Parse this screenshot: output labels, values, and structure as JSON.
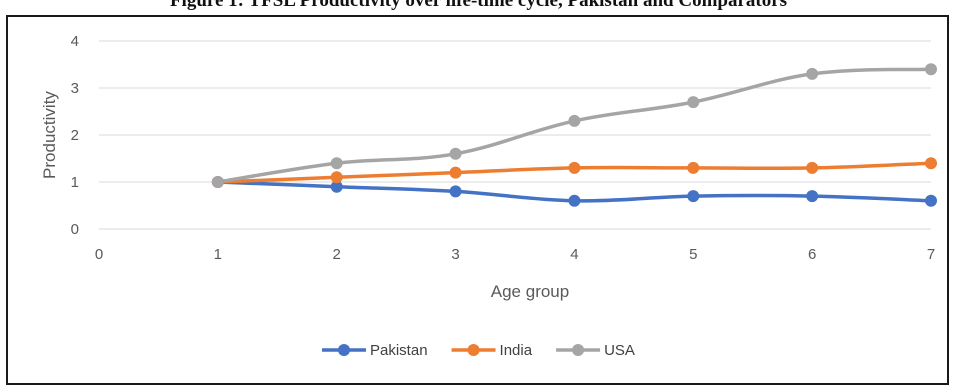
{
  "caption": "Figure 1: TFSL Productivity over life-time cycle, Pakistan and Comparators",
  "chart_data": {
    "type": "line",
    "title": "",
    "xlabel": "Age group",
    "ylabel": "Productivity",
    "x": [
      1,
      2,
      3,
      4,
      5,
      6,
      7
    ],
    "xlim": [
      0,
      7
    ],
    "ylim": [
      0,
      4
    ],
    "xticks": [
      0,
      1,
      2,
      3,
      4,
      5,
      6,
      7
    ],
    "yticks": [
      0,
      1,
      2,
      3,
      4
    ],
    "grid": "horizontal",
    "legend_position": "bottom",
    "series": [
      {
        "name": "Pakistan",
        "color": "#4472c4",
        "values": [
          1.0,
          0.9,
          0.8,
          0.6,
          0.7,
          0.7,
          0.6
        ]
      },
      {
        "name": "India",
        "color": "#ed7d31",
        "values": [
          1.0,
          1.1,
          1.2,
          1.3,
          1.3,
          1.3,
          1.4
        ]
      },
      {
        "name": "USA",
        "color": "#a5a5a5",
        "values": [
          1.0,
          1.4,
          1.6,
          2.3,
          2.7,
          3.3,
          3.4
        ]
      }
    ]
  }
}
